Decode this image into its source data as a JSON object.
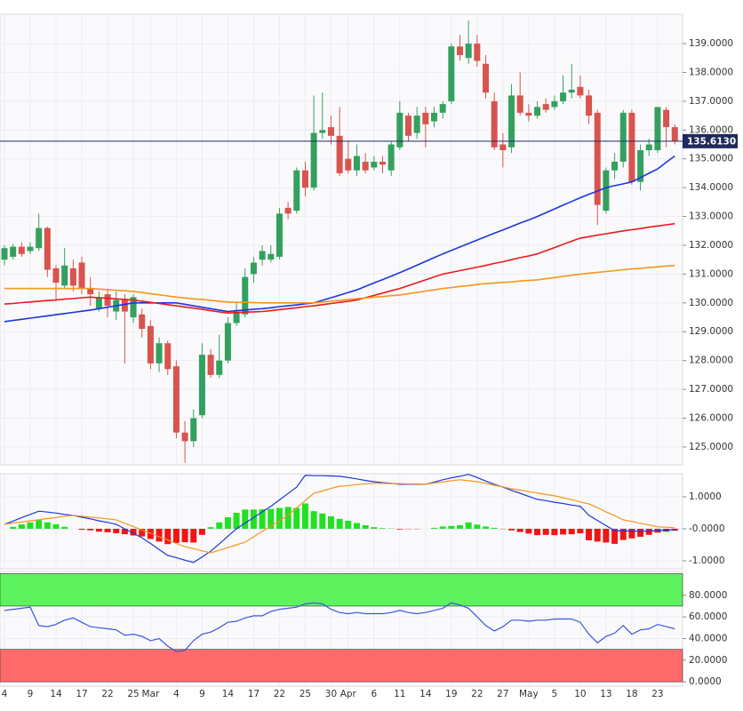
{
  "chart_data": [
    {
      "type": "candlestick",
      "categories": [
        "4",
        null,
        null,
        "9",
        null,
        null,
        "14",
        null,
        null,
        "17",
        null,
        null,
        "22",
        null,
        null,
        "25",
        null,
        "Mar",
        null,
        null,
        "4",
        null,
        null,
        "9",
        null,
        null,
        "14",
        null,
        null,
        "17",
        null,
        null,
        "22",
        null,
        null,
        "25",
        null,
        null,
        "30",
        null,
        "Apr",
        null,
        null,
        "6",
        null,
        null,
        "11",
        null,
        null,
        "14",
        null,
        null,
        "19",
        null,
        null,
        "22",
        null,
        null,
        "27",
        null,
        null,
        "May",
        null,
        null,
        "5",
        null,
        null,
        "10",
        null,
        null,
        "13",
        null,
        null,
        "18",
        null,
        null,
        "23",
        null,
        null
      ],
      "open": [
        131.5,
        131.6,
        131.95,
        131.8,
        131.9,
        132.6,
        131.2,
        130.6,
        131.2,
        131.4,
        130.5,
        129.8,
        130.3,
        129.7,
        130.1,
        129.5,
        129.6,
        129.2,
        127.9,
        128.6,
        127.8,
        125.5,
        125.2,
        126.1,
        128.2,
        127.5,
        128.0,
        129.3,
        129.6,
        131.0,
        131.5,
        131.5,
        131.6,
        133.3,
        133.2,
        134.6,
        134.0,
        135.9,
        136.1,
        135.8,
        135.0,
        134.6,
        134.9,
        134.7,
        134.9,
        134.6,
        135.4,
        136.5,
        135.9,
        136.6,
        136.3,
        136.6,
        137.0,
        138.9,
        138.5,
        139.0,
        138.3,
        137.0,
        135.5,
        135.4,
        137.2,
        136.6,
        136.5,
        136.9,
        136.8,
        137.0,
        137.3,
        137.5,
        137.2,
        136.6,
        133.2,
        134.6,
        134.9,
        136.6,
        134.2,
        135.3,
        135.3,
        136.7,
        136.1
      ],
      "high": [
        132.0,
        132.05,
        132.1,
        132.1,
        133.1,
        132.65,
        131.3,
        131.9,
        131.5,
        131.6,
        130.9,
        130.4,
        130.5,
        130.4,
        130.3,
        130.3,
        129.8,
        129.4,
        128.8,
        128.7,
        128.0,
        125.9,
        126.3,
        128.6,
        128.4,
        128.9,
        129.5,
        130.0,
        131.2,
        131.6,
        132.0,
        132.0,
        133.3,
        133.5,
        134.7,
        134.9,
        137.2,
        137.3,
        136.5,
        136.8,
        135.6,
        135.5,
        135.2,
        135.1,
        135.1,
        135.6,
        137.0,
        136.6,
        136.8,
        136.8,
        136.8,
        137.0,
        139.0,
        139.3,
        139.8,
        139.3,
        138.6,
        137.3,
        135.9,
        137.6,
        138.0,
        136.9,
        137.0,
        137.1,
        137.2,
        137.9,
        138.3,
        137.9,
        137.4,
        136.7,
        134.7,
        135.2,
        136.7,
        136.7,
        135.5,
        135.7,
        136.8,
        136.8,
        136.2
      ],
      "low": [
        131.3,
        131.5,
        131.6,
        131.7,
        131.8,
        130.9,
        130.1,
        130.5,
        130.4,
        130.3,
        129.9,
        129.7,
        129.5,
        129.4,
        127.9,
        129.3,
        128.8,
        127.7,
        127.6,
        127.5,
        125.3,
        124.45,
        125.0,
        126.0,
        127.4,
        127.4,
        127.9,
        129.2,
        129.5,
        130.7,
        131.3,
        131.4,
        131.5,
        132.9,
        133.1,
        133.7,
        133.9,
        135.7,
        135.5,
        134.4,
        134.5,
        134.4,
        134.5,
        134.6,
        134.5,
        134.4,
        135.3,
        135.6,
        135.7,
        135.4,
        136.1,
        136.4,
        136.9,
        138.4,
        138.3,
        138.2,
        137.1,
        135.3,
        134.7,
        135.2,
        136.5,
        136.3,
        136.4,
        136.6,
        136.7,
        136.9,
        137.1,
        137.1,
        136.2,
        132.7,
        133.1,
        134.3,
        134.7,
        134.1,
        133.9,
        135.1,
        135.2,
        135.4,
        135.5
      ],
      "close": [
        131.9,
        131.95,
        131.7,
        131.95,
        132.6,
        131.15,
        130.7,
        131.3,
        130.6,
        130.5,
        130.3,
        130.2,
        129.9,
        130.1,
        129.7,
        130.2,
        129.1,
        127.9,
        128.6,
        127.7,
        125.5,
        125.2,
        126.0,
        128.2,
        127.5,
        128.0,
        129.3,
        129.7,
        130.9,
        131.4,
        131.8,
        131.7,
        133.1,
        133.1,
        134.6,
        134.0,
        135.9,
        136.0,
        135.8,
        134.5,
        134.6,
        135.1,
        134.6,
        134.9,
        134.8,
        135.5,
        136.6,
        135.8,
        136.5,
        136.2,
        136.6,
        136.9,
        138.9,
        138.6,
        139.0,
        138.4,
        137.3,
        135.4,
        135.3,
        137.2,
        136.6,
        136.5,
        136.8,
        136.7,
        137.0,
        137.3,
        137.4,
        137.2,
        136.5,
        133.4,
        134.6,
        134.9,
        136.6,
        134.2,
        135.3,
        135.5,
        136.8,
        136.1,
        135.613
      ],
      "up_color": "#34a05f",
      "down_color": "#d9534f",
      "series": [
        {
          "color": "#1a35e0",
          "values": [
            129.35,
            129.39,
            129.43,
            129.47,
            129.51,
            129.55,
            129.59,
            129.63,
            129.67,
            129.71,
            129.75,
            129.8,
            129.85,
            129.9,
            129.95,
            130.0,
            130.0,
            130.0,
            130.0,
            130.0,
            130.0,
            129.95,
            129.9,
            129.85,
            129.8,
            129.75,
            129.7,
            129.73,
            129.75,
            129.78,
            129.8,
            129.83,
            129.87,
            129.9,
            129.93,
            129.97,
            130.0,
            130.09,
            130.18,
            130.27,
            130.36,
            130.45,
            130.57,
            130.69,
            130.81,
            130.93,
            131.05,
            131.18,
            131.31,
            131.44,
            131.57,
            131.7,
            131.82,
            131.94,
            132.06,
            132.18,
            132.3,
            132.42,
            132.53,
            132.65,
            132.77,
            132.88,
            133.0,
            133.13,
            133.26,
            133.39,
            133.52,
            133.65,
            133.77,
            133.88,
            134.0,
            134.07,
            134.13,
            134.2,
            134.35,
            134.5,
            134.65,
            134.88,
            135.1
          ]
        },
        {
          "color": "#e8191c",
          "values": [
            129.96,
            129.98,
            130.01,
            130.03,
            130.06,
            130.08,
            130.1,
            130.13,
            130.15,
            130.18,
            130.2,
            130.18,
            130.16,
            130.14,
            130.12,
            130.1,
            130.06,
            130.02,
            129.98,
            129.94,
            129.9,
            129.86,
            129.82,
            129.78,
            129.73,
            129.69,
            129.65,
            129.66,
            129.68,
            129.69,
            129.7,
            129.73,
            129.77,
            129.8,
            129.83,
            129.87,
            129.9,
            129.94,
            129.98,
            130.02,
            130.06,
            130.1,
            130.18,
            130.26,
            130.34,
            130.42,
            130.5,
            130.6,
            130.7,
            130.8,
            130.9,
            131.0,
            131.06,
            131.12,
            131.18,
            131.24,
            131.3,
            131.37,
            131.43,
            131.5,
            131.57,
            131.63,
            131.7,
            131.81,
            131.92,
            132.03,
            132.14,
            132.25,
            132.3,
            132.35,
            132.4,
            132.45,
            132.5,
            132.54,
            132.58,
            132.63,
            132.67,
            132.71,
            132.75
          ]
        },
        {
          "color": "#f7941d",
          "values": [
            130.5,
            130.5,
            130.5,
            130.5,
            130.5,
            130.5,
            130.5,
            130.5,
            130.5,
            130.5,
            130.5,
            130.48,
            130.46,
            130.44,
            130.42,
            130.4,
            130.36,
            130.32,
            130.28,
            130.24,
            130.2,
            130.17,
            130.14,
            130.12,
            130.09,
            130.06,
            130.03,
            130.02,
            130.02,
            130.01,
            130.0,
            130.0,
            130.0,
            130.0,
            130.0,
            130.0,
            130.0,
            130.03,
            130.06,
            130.09,
            130.12,
            130.15,
            130.17,
            130.2,
            130.22,
            130.25,
            130.27,
            130.32,
            130.36,
            130.41,
            130.45,
            130.5,
            130.53,
            130.57,
            130.6,
            130.64,
            130.67,
            130.69,
            130.71,
            130.73,
            130.76,
            130.78,
            130.8,
            130.84,
            130.88,
            130.92,
            130.96,
            131.0,
            131.03,
            131.06,
            131.09,
            131.12,
            131.15,
            131.18,
            131.2,
            131.23,
            131.25,
            131.28,
            131.3
          ]
        }
      ],
      "last_price": {
        "value": 135.613,
        "label": "135.6130"
      },
      "last_price_color": "#1f2a5c",
      "ylim": [
        124.38,
        140.02
      ],
      "yticks": [
        {
          "value": 125,
          "label": "125.0000"
        },
        {
          "value": 126,
          "label": "126.0000"
        },
        {
          "value": 127,
          "label": "127.0000"
        },
        {
          "value": 128,
          "label": "128.0000"
        },
        {
          "value": 129,
          "label": "129.0000"
        },
        {
          "value": 130,
          "label": "130.0000"
        },
        {
          "value": 131,
          "label": "131.0000"
        },
        {
          "value": 132,
          "label": "132.0000"
        },
        {
          "value": 133,
          "label": "133.0000"
        },
        {
          "value": 134,
          "label": "134.0000"
        },
        {
          "value": 135,
          "label": "135.0000"
        },
        {
          "value": 136,
          "label": "136.0000"
        },
        {
          "value": 137,
          "label": "137.0000"
        },
        {
          "value": 138,
          "label": "138.0000"
        },
        {
          "value": 139,
          "label": "139.0000"
        }
      ],
      "grid": true
    },
    {
      "type": "macd",
      "series": [
        {
          "color": "#1a35e0",
          "values": [
            0.14,
            0.24,
            0.35,
            0.45,
            0.55,
            0.52,
            0.49,
            0.45,
            0.42,
            0.36,
            0.31,
            0.25,
            0.2,
            0.14,
            0.0,
            -0.14,
            -0.28,
            -0.46,
            -0.65,
            -0.83,
            -0.9,
            -0.98,
            -1.05,
            -0.88,
            -0.7,
            -0.47,
            -0.23,
            0.0,
            0.18,
            0.35,
            0.53,
            0.7,
            0.9,
            1.1,
            1.3,
            1.67,
            1.66,
            1.66,
            1.65,
            1.64,
            1.6,
            1.56,
            1.51,
            1.47,
            1.44,
            1.42,
            1.39,
            1.39,
            1.39,
            1.39,
            1.46,
            1.53,
            1.59,
            1.64,
            1.7,
            1.6,
            1.49,
            1.39,
            1.3,
            1.2,
            1.11,
            1.01,
            0.92,
            0.88,
            0.83,
            0.79,
            0.74,
            0.7,
            0.42,
            0.26,
            0.1,
            -0.06,
            -0.07,
            -0.07,
            -0.08,
            -0.07,
            -0.06,
            -0.04,
            -0.03
          ]
        },
        {
          "color": "#f7941d",
          "values": [
            0.14,
            0.18,
            0.21,
            0.25,
            0.28,
            0.32,
            0.35,
            0.39,
            0.42,
            0.39,
            0.36,
            0.34,
            0.31,
            0.28,
            0.17,
            0.07,
            -0.04,
            -0.14,
            -0.25,
            -0.35,
            -0.46,
            -0.56,
            -0.62,
            -0.69,
            -0.75,
            -0.67,
            -0.59,
            -0.5,
            -0.42,
            -0.25,
            -0.08,
            0.08,
            0.25,
            0.42,
            0.65,
            0.88,
            1.11,
            1.18,
            1.26,
            1.33,
            1.35,
            1.38,
            1.4,
            1.42,
            1.42,
            1.41,
            1.41,
            1.4,
            1.4,
            1.39,
            1.43,
            1.46,
            1.5,
            1.53,
            1.5,
            1.47,
            1.42,
            1.36,
            1.31,
            1.25,
            1.21,
            1.16,
            1.12,
            1.07,
            1.03,
            0.97,
            0.91,
            0.84,
            0.78,
            0.66,
            0.53,
            0.41,
            0.28,
            0.23,
            0.17,
            0.12,
            0.06,
            0.05,
            0.03
          ]
        }
      ],
      "histogram": [
        0.0,
        0.06,
        0.14,
        0.2,
        0.27,
        0.2,
        0.14,
        0.06,
        0.0,
        -0.03,
        -0.05,
        -0.09,
        -0.11,
        -0.14,
        -0.17,
        -0.21,
        -0.24,
        -0.32,
        -0.4,
        -0.48,
        -0.44,
        -0.42,
        -0.43,
        -0.19,
        0.05,
        0.2,
        0.36,
        0.5,
        0.6,
        0.6,
        0.61,
        0.62,
        0.65,
        0.68,
        0.65,
        0.79,
        0.55,
        0.48,
        0.39,
        0.31,
        0.25,
        0.18,
        0.11,
        0.05,
        0.02,
        0.01,
        -0.02,
        -0.01,
        -0.01,
        0.0,
        0.03,
        0.07,
        0.09,
        0.11,
        0.2,
        0.13,
        0.07,
        0.03,
        -0.01,
        -0.05,
        -0.1,
        -0.15,
        -0.2,
        -0.19,
        -0.2,
        -0.18,
        -0.17,
        -0.14,
        -0.36,
        -0.4,
        -0.43,
        -0.47,
        -0.35,
        -0.3,
        -0.25,
        -0.19,
        -0.12,
        -0.09,
        -0.06
      ],
      "pos_color": "#22e022",
      "neg_color": "#f01515",
      "ylim": [
        -1.25,
        1.72
      ],
      "yticks": [
        {
          "value": 1,
          "label": "1.0000"
        },
        {
          "value": 0,
          "label": "-0.0000"
        },
        {
          "value": -1,
          "label": "-1.0000"
        }
      ],
      "grid": true
    },
    {
      "type": "line",
      "series": [
        {
          "color": "#3a55e0",
          "values": [
            66,
            67,
            68,
            69,
            52,
            51,
            53,
            57,
            59,
            55,
            51,
            50,
            49,
            48,
            43,
            44,
            42,
            38,
            40,
            33,
            28,
            29,
            38,
            44,
            46,
            50,
            55,
            56,
            59,
            61,
            61,
            65,
            67,
            68,
            69,
            72,
            73,
            72,
            67,
            64,
            63,
            64,
            63,
            63,
            63,
            64,
            66,
            64,
            63,
            64,
            66,
            68,
            73,
            71,
            68,
            60,
            52,
            47,
            51,
            57,
            57,
            56,
            57,
            57,
            58,
            58,
            58,
            55,
            44,
            36,
            42,
            45,
            52,
            44,
            48,
            49,
            53,
            51,
            49
          ]
        }
      ],
      "bands": [
        {
          "from": 70,
          "to": 100,
          "color": "#5ef25e"
        },
        {
          "from": 0,
          "to": 30,
          "color": "#ff6b6b"
        }
      ],
      "ylim": [
        -4,
        102
      ],
      "yticks": [
        {
          "value": 0,
          "label": "0.0000"
        },
        {
          "value": 20,
          "label": "20.0000"
        },
        {
          "value": 40,
          "label": "40.0000"
        },
        {
          "value": 60,
          "label": "60.0000"
        },
        {
          "value": 80,
          "label": "80.0000"
        }
      ],
      "grid": true
    }
  ]
}
